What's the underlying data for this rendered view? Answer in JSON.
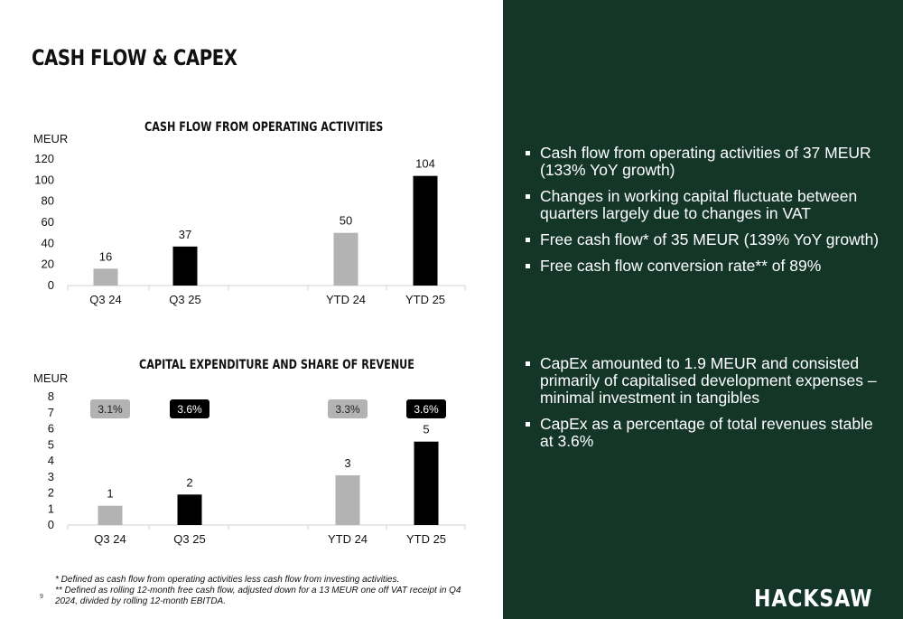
{
  "page": {
    "title": "CASH FLOW & CAPEX",
    "page_number": "9"
  },
  "chart_data": [
    {
      "type": "bar",
      "title": "CASH FLOW FROM OPERATING ACTIVITIES",
      "ylabel": "MEUR",
      "categories": [
        "Q3 24",
        "Q3 25",
        "YTD 24",
        "YTD 25"
      ],
      "values": [
        16,
        37,
        50,
        104
      ],
      "data_labels": [
        "16",
        "37",
        "50",
        "104"
      ],
      "ylim": [
        0,
        120
      ],
      "yticks": [
        "0",
        "20",
        "40",
        "60",
        "80",
        "100",
        "120"
      ],
      "colors": [
        "#b3b3b3",
        "#000000",
        "#b3b3b3",
        "#000000"
      ],
      "grid": false
    },
    {
      "type": "bar",
      "title": "CAPITAL EXPENDITURE AND SHARE OF REVENUE",
      "ylabel": "MEUR",
      "categories": [
        "Q3 24",
        "Q3 25",
        "YTD 24",
        "YTD 25"
      ],
      "values": [
        1.2,
        1.9,
        3.1,
        5.2
      ],
      "data_labels": [
        "1",
        "2",
        "3",
        "5"
      ],
      "share_of_revenue": [
        "3.1%",
        "3.6%",
        "3.3%",
        "3.6%"
      ],
      "ylim": [
        0,
        8
      ],
      "yticks": [
        "0",
        "1",
        "2",
        "3",
        "4",
        "5",
        "6",
        "7",
        "8"
      ],
      "colors": [
        "#b3b3b3",
        "#000000",
        "#b3b3b3",
        "#000000"
      ],
      "grid": false
    }
  ],
  "bullets_top": [
    "Cash flow from operating activities of 37 MEUR (133% YoY growth)",
    "Changes in working capital fluctuate between quarters largely due to changes in VAT",
    "Free cash flow* of 35 MEUR (139% YoY growth)",
    "Free cash flow conversion rate** of 89%"
  ],
  "bullets_bottom": [
    "CapEx amounted to 1.9 MEUR and consisted primarily of capitalised development expenses – minimal investment in tangibles",
    "CapEx as a percentage of total revenues stable at 3.6%"
  ],
  "footnotes": [
    "* Defined as cash flow from operating activities less cash flow from investing activities.",
    "** Defined as rolling 12-month free cash flow, adjusted down for a 13 MEUR one off VAT receipt in Q4 2024, divided by rolling 12-month EBITDA."
  ],
  "logo": {
    "text": "HACKSAW"
  }
}
